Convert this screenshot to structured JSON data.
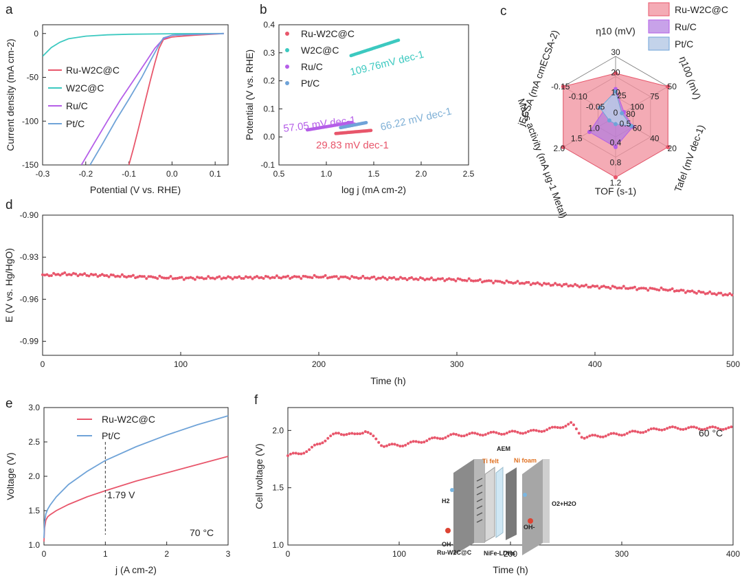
{
  "colors": {
    "ru_w2c": "#e8566b",
    "w2c": "#3cc9c0",
    "ru_c": "#b55ee8",
    "pt_c": "#6fa3d8",
    "fill_ru_w2c": "#f08f9c",
    "fill_ru_c": "#b07ae0",
    "fill_pt_c": "#b9cbe6"
  },
  "chart_data": [
    {
      "panel": "a",
      "type": "line",
      "xlabel": "Potential (V vs. RHE)",
      "ylabel": "Current density (mA cm-2)",
      "xlim": [
        -0.3,
        0.13
      ],
      "ylim": [
        -150,
        10
      ],
      "xticks": [
        "-0.3",
        "-0.2",
        "-0.1",
        "0.0",
        "0.1"
      ],
      "yticks": [
        "0",
        "-50",
        "-100",
        "-150"
      ],
      "xtick_vals": [
        -0.3,
        -0.2,
        -0.1,
        0.0,
        0.1
      ],
      "ytick_vals": [
        0,
        -50,
        -100,
        -150
      ],
      "legend": [
        "Ru-W2C@C",
        "W2C@C",
        "Ru/C",
        "Pt/C"
      ],
      "series": [
        {
          "name": "Ru-W2C@C",
          "x": [
            -0.1,
            -0.09,
            -0.08,
            -0.07,
            -0.06,
            -0.05,
            -0.04,
            -0.03,
            -0.02,
            0.0,
            0.05,
            0.12
          ],
          "y": [
            -150,
            -132,
            -113,
            -93,
            -73,
            -53,
            -34,
            -17,
            -7,
            -4,
            -2,
            0
          ]
        },
        {
          "name": "W2C@C",
          "x": [
            -0.3,
            -0.28,
            -0.26,
            -0.24,
            -0.2,
            -0.15,
            -0.1,
            0.0,
            0.12
          ],
          "y": [
            -26,
            -16,
            -10,
            -6,
            -3,
            -1.5,
            -0.8,
            -0.3,
            0
          ]
        },
        {
          "name": "Ru/C",
          "x": [
            -0.21,
            -0.18,
            -0.15,
            -0.12,
            -0.09,
            -0.06,
            -0.04,
            -0.02,
            0.0,
            0.05,
            0.12
          ],
          "y": [
            -150,
            -125,
            -100,
            -76,
            -54,
            -32,
            -17,
            -6,
            -2,
            -1,
            0
          ]
        },
        {
          "name": "Pt/C",
          "x": [
            -0.19,
            -0.16,
            -0.13,
            -0.1,
            -0.07,
            -0.05,
            -0.03,
            -0.02,
            0.0,
            0.05,
            0.12
          ],
          "y": [
            -150,
            -125,
            -99,
            -75,
            -50,
            -31,
            -13,
            -5,
            -2,
            -1,
            0
          ]
        }
      ]
    },
    {
      "panel": "b",
      "type": "scatter",
      "xlabel": "log j (mA cm-2)",
      "ylabel": "Potential (V vs. RHE)",
      "xlim": [
        0.5,
        2.5
      ],
      "ylim": [
        -0.1,
        0.4
      ],
      "xticks": [
        "0.5",
        "1.0",
        "1.5",
        "2.0",
        "2.5"
      ],
      "yticks": [
        "0.4",
        "0.3",
        "0.2",
        "0.1",
        "0.0",
        "-0.1"
      ],
      "xtick_vals": [
        0.5,
        1.0,
        1.5,
        2.0,
        2.5
      ],
      "ytick_vals": [
        0.4,
        0.3,
        0.2,
        0.1,
        0.0,
        -0.1
      ],
      "legend": [
        "Ru-W2C@C",
        "W2C@C",
        "Ru/C",
        "Pt/C"
      ],
      "annotations": [
        "109.76mV dec-1",
        "57.05 mV dec-1",
        "66.22 mV dec-1",
        "29.83 mV dec-1"
      ],
      "series": [
        {
          "name": "Ru-W2C@C",
          "x_range": [
            1.1,
            1.47
          ],
          "slope": 0.02983,
          "y_start": 0.012
        },
        {
          "name": "W2C@C",
          "x_range": [
            1.26,
            1.76
          ],
          "slope": 0.10976,
          "y_start": 0.29
        },
        {
          "name": "Ru/C",
          "x_range": [
            0.8,
            1.27
          ],
          "slope": 0.05705,
          "y_start": 0.025
        },
        {
          "name": "Pt/C",
          "x_range": [
            1.15,
            1.42
          ],
          "slope": 0.06622,
          "y_start": 0.033
        }
      ]
    },
    {
      "panel": "c",
      "type": "radar",
      "axes": [
        {
          "label": "η10 (mV)",
          "ticks": [
            "0",
            "10",
            "20",
            "30"
          ]
        },
        {
          "label": "η100 (mV)",
          "ticks": [
            "100",
            "75",
            "50"
          ]
        },
        {
          "label": "Tafel (mV dec-1)",
          "ticks": [
            "60",
            "40",
            "20"
          ]
        },
        {
          "label": "TOF (s-1)",
          "ticks": [
            "0.4",
            "0.8",
            "1.2"
          ]
        },
        {
          "label": "Mass activity (mA μg-1 Metal)",
          "ticks": [
            "1.0",
            "1.5",
            "2.0"
          ]
        },
        {
          "label": "jECSA (mA cmECSA-2)",
          "ticks": [
            "-0.05",
            "-0.10",
            "-0.15"
          ]
        }
      ],
      "center_ticks": [
        "25",
        "80",
        "0.5"
      ],
      "legend": [
        "Ru-W2C@C",
        "Ru/C",
        "Pt/C"
      ],
      "series": [
        {
          "name": "Ru-W2C@C",
          "values": [
            0.72,
            1.0,
            1.0,
            1.0,
            1.0,
            1.0
          ]
        },
        {
          "name": "Ru/C",
          "values": [
            0.46,
            0.16,
            0.33,
            0.5,
            0.5,
            0.22
          ]
        },
        {
          "name": "Pt/C",
          "values": [
            0.42,
            0.12,
            0.3,
            0.12,
            0.12,
            0.3
          ]
        }
      ]
    },
    {
      "panel": "d",
      "type": "scatter",
      "xlabel": "Time (h)",
      "ylabel": "E (V vs. Hg/HgO)",
      "xlim": [
        0,
        500
      ],
      "ylim": [
        -1.0,
        -0.9
      ],
      "xticks": [
        "0",
        "100",
        "200",
        "300",
        "400",
        "500"
      ],
      "yticks": [
        "-0.90",
        "-0.93",
        "-0.96",
        "-0.99"
      ],
      "xtick_vals": [
        0,
        100,
        200,
        300,
        400,
        500
      ],
      "ytick_vals": [
        -0.9,
        -0.93,
        -0.96,
        -0.99
      ],
      "series": [
        {
          "name": "Ru-W2C@C",
          "x": [
            0,
            15,
            100,
            200,
            300,
            400,
            450,
            500
          ],
          "y": [
            -0.943,
            -0.942,
            -0.945,
            -0.944,
            -0.946,
            -0.951,
            -0.953,
            -0.957
          ]
        }
      ]
    },
    {
      "panel": "e",
      "type": "line",
      "xlabel": "j (A cm-2)",
      "ylabel": "Voltage (V)",
      "xlim": [
        0,
        3
      ],
      "ylim": [
        1.0,
        3.0
      ],
      "xticks": [
        "0",
        "1",
        "2",
        "3"
      ],
      "yticks": [
        "3.0",
        "2.5",
        "2.0",
        "1.5",
        "1.0"
      ],
      "xtick_vals": [
        0,
        1,
        2,
        3
      ],
      "ytick_vals": [
        3.0,
        2.5,
        2.0,
        1.5,
        1.0
      ],
      "legend": [
        "Ru-W2C@C",
        "Pt/C"
      ],
      "annotations": [
        "1.79 V",
        "70 °C"
      ],
      "series": [
        {
          "name": "Ru-W2C@C",
          "x": [
            0,
            0.01,
            0.03,
            0.06,
            0.1,
            0.2,
            0.4,
            0.7,
            1.0,
            1.5,
            2.0,
            2.5,
            3.0
          ],
          "y": [
            1.05,
            1.25,
            1.36,
            1.41,
            1.44,
            1.5,
            1.59,
            1.7,
            1.79,
            1.93,
            2.05,
            2.17,
            2.29
          ]
        },
        {
          "name": "Pt/C",
          "x": [
            0,
            0.01,
            0.03,
            0.06,
            0.1,
            0.2,
            0.4,
            0.7,
            1.0,
            1.5,
            2.0,
            2.5,
            3.0
          ],
          "y": [
            1.1,
            1.33,
            1.45,
            1.52,
            1.58,
            1.7,
            1.88,
            2.07,
            2.23,
            2.43,
            2.6,
            2.75,
            2.88
          ]
        }
      ]
    },
    {
      "panel": "f",
      "type": "scatter",
      "xlabel": "Time (h)",
      "ylabel": "Cell voltage (V)",
      "xlim": [
        0,
        400
      ],
      "ylim": [
        1.0,
        2.2
      ],
      "xticks": [
        "0",
        "100",
        "200",
        "300",
        "400"
      ],
      "yticks": [
        "2.0",
        "1.5",
        "1.0"
      ],
      "xtick_vals": [
        0,
        100,
        200,
        300,
        400
      ],
      "ytick_vals": [
        2.0,
        1.5,
        1.0
      ],
      "annotations": [
        "60 °C"
      ],
      "series": [
        {
          "name": "Ru-W2C@C",
          "x": [
            0,
            10,
            20,
            25,
            45,
            60,
            70,
            85,
            100,
            150,
            220,
            240,
            255,
            265,
            300,
            340,
            400
          ],
          "y": [
            1.78,
            1.8,
            1.83,
            1.87,
            1.98,
            1.96,
            2.0,
            1.87,
            1.87,
            1.96,
            1.99,
            2.02,
            2.06,
            1.94,
            1.97,
            2.02,
            2.02
          ]
        }
      ],
      "inset_labels": [
        "Ti felt",
        "AEM",
        "Ni foam",
        "H2",
        "O2+H2O",
        "OH-",
        "OH-",
        "Ru-W2C@C",
        "NiFe-LDHs"
      ]
    }
  ],
  "panel_letters": [
    "a",
    "b",
    "c",
    "d",
    "e",
    "f"
  ]
}
